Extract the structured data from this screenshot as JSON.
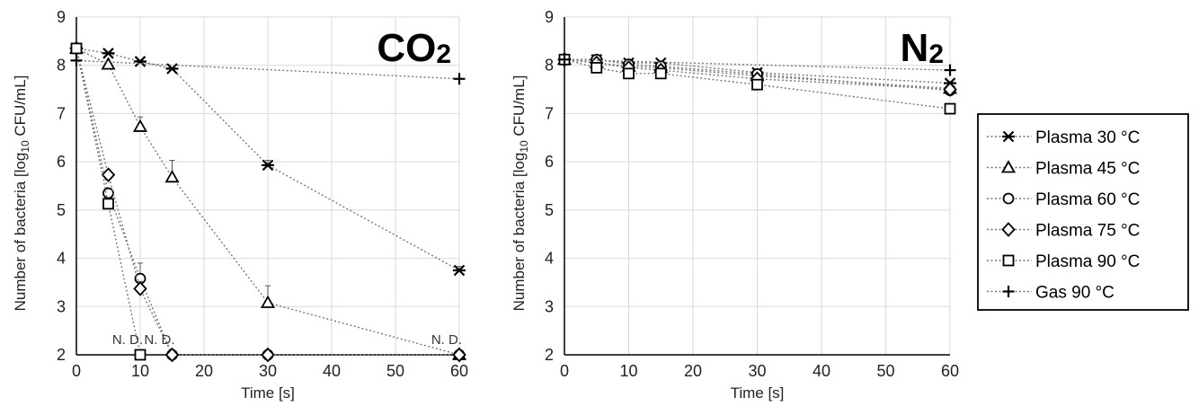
{
  "chart_data": [
    {
      "type": "line",
      "title": "CO₂",
      "title_main": "CO",
      "title_sub": "2",
      "xlabel": "Time [s]",
      "ylabel_pre": "Number of  bacteria [log",
      "ylabel_sub": "10",
      "ylabel_post": " CFU/mL]",
      "xlim": [
        0,
        60
      ],
      "ylim": [
        2,
        9
      ],
      "xticks": [
        0,
        10,
        20,
        30,
        40,
        50,
        60
      ],
      "yticks": [
        2,
        3,
        4,
        5,
        6,
        7,
        8,
        9
      ],
      "grid": true,
      "annotations": [
        {
          "text": "N. D.",
          "x": 10,
          "y": 2
        },
        {
          "text": "N. D.",
          "x": 15,
          "y": 2
        },
        {
          "text": "N. D.",
          "x": 60,
          "y": 2
        }
      ],
      "series": [
        {
          "name": "Plasma 30 °C",
          "marker": "asterisk",
          "x": [
            0,
            5,
            10,
            15,
            30,
            60
          ],
          "y": [
            8.35,
            8.25,
            8.08,
            7.93,
            5.93,
            3.75
          ],
          "yerr": [
            0.05,
            0.05,
            0.05,
            0.05,
            0.1,
            0.08
          ]
        },
        {
          "name": "Plasma 45 °C",
          "marker": "triangle",
          "x": [
            0,
            5,
            10,
            15,
            30,
            60
          ],
          "y": [
            8.35,
            8.02,
            6.73,
            5.68,
            3.08,
            2.0
          ],
          "yerr": [
            0.05,
            0.05,
            0.2,
            0.35,
            0.35,
            0
          ]
        },
        {
          "name": "Plasma 60 °C",
          "marker": "circle",
          "x": [
            0,
            5,
            10,
            15,
            30,
            60
          ],
          "y": [
            8.35,
            5.35,
            3.58,
            2.0,
            2.0,
            2.0
          ],
          "yerr": [
            0.05,
            0.1,
            0.32,
            0,
            0,
            0
          ]
        },
        {
          "name": "Plasma 75 °C",
          "marker": "diamond",
          "x": [
            0,
            5,
            10,
            15,
            30,
            60
          ],
          "y": [
            8.35,
            5.73,
            3.37,
            2.0,
            2.0,
            2.0
          ],
          "yerr": [
            0.05,
            0.1,
            0.15,
            0,
            0,
            0
          ]
        },
        {
          "name": "Plasma 90 °C",
          "marker": "square",
          "x": [
            0,
            5,
            10
          ],
          "y": [
            8.35,
            5.13,
            2.0
          ],
          "yerr": [
            0.05,
            0.1,
            0
          ]
        },
        {
          "name": "Gas 90 °C",
          "marker": "plus",
          "x": [
            0,
            60
          ],
          "y": [
            8.1,
            7.72
          ],
          "yerr": [
            0.05,
            0.05
          ]
        }
      ]
    },
    {
      "type": "line",
      "title": "N₂",
      "title_main": "N",
      "title_sub": "2",
      "xlabel": "Time [s]",
      "ylabel_pre": "Number of  bacteria [log",
      "ylabel_sub": "10",
      "ylabel_post": " CFU/mL]",
      "xlim": [
        0,
        60
      ],
      "ylim": [
        2,
        9
      ],
      "xticks": [
        0,
        10,
        20,
        30,
        40,
        50,
        60
      ],
      "yticks": [
        2,
        3,
        4,
        5,
        6,
        7,
        8,
        9
      ],
      "grid": true,
      "annotations": [],
      "series": [
        {
          "name": "Plasma 30 °C",
          "marker": "asterisk",
          "x": [
            0,
            5,
            10,
            15,
            30,
            60
          ],
          "y": [
            8.12,
            8.12,
            8.05,
            8.05,
            7.85,
            7.63
          ],
          "yerr": [
            0.03,
            0.03,
            0.03,
            0.03,
            0.03,
            0.05
          ]
        },
        {
          "name": "Plasma 45 °C",
          "marker": "triangle",
          "x": [
            0,
            5,
            10,
            15,
            30,
            60
          ],
          "y": [
            8.12,
            8.05,
            7.98,
            7.95,
            7.78,
            7.52
          ],
          "yerr": [
            0.03,
            0.03,
            0.03,
            0.03,
            0.03,
            0.05
          ]
        },
        {
          "name": "Plasma 60 °C",
          "marker": "circle",
          "x": [
            0,
            5,
            10,
            15,
            30,
            60
          ],
          "y": [
            8.12,
            8.12,
            8.02,
            7.98,
            7.82,
            7.48
          ],
          "yerr": [
            0.03,
            0.03,
            0.03,
            0.03,
            0.03,
            0.05
          ]
        },
        {
          "name": "Plasma 75 °C",
          "marker": "diamond",
          "x": [
            0,
            5,
            10,
            15,
            30,
            60
          ],
          "y": [
            8.12,
            8.05,
            7.95,
            7.9,
            7.72,
            7.5
          ],
          "yerr": [
            0.03,
            0.03,
            0.03,
            0.03,
            0.03,
            0.05
          ]
        },
        {
          "name": "Plasma 90 °C",
          "marker": "square",
          "x": [
            0,
            5,
            10,
            15,
            30,
            60
          ],
          "y": [
            8.12,
            7.95,
            7.83,
            7.83,
            7.6,
            7.1
          ],
          "yerr": [
            0.03,
            0.03,
            0.03,
            0.03,
            0.03,
            0.05
          ]
        },
        {
          "name": "Gas 90 °C",
          "marker": "plus",
          "x": [
            0,
            60
          ],
          "y": [
            8.12,
            7.9
          ],
          "yerr": [
            0.03,
            0.03
          ]
        }
      ]
    }
  ],
  "legend": {
    "placement": "right",
    "entries": [
      {
        "label": "Plasma 30 °C",
        "marker": "asterisk"
      },
      {
        "label": "Plasma 45 °C",
        "marker": "triangle"
      },
      {
        "label": "Plasma 60 °C",
        "marker": "circle"
      },
      {
        "label": "Plasma 75 °C",
        "marker": "diamond"
      },
      {
        "label": "Plasma 90 °C",
        "marker": "square"
      },
      {
        "label": "Gas 90 °C",
        "marker": "plus"
      }
    ]
  }
}
